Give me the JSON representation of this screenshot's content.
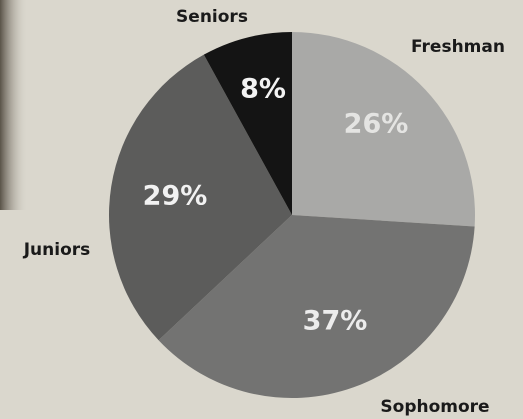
{
  "chart_data": {
    "type": "pie",
    "categories": [
      "Freshman",
      "Sophomore",
      "Juniors",
      "Seniors"
    ],
    "values": [
      26,
      37,
      29,
      8
    ],
    "value_labels": [
      "26%",
      "37%",
      "29%",
      "8%"
    ],
    "colors": [
      "#a9a9a7",
      "#737372",
      "#5c5c5b",
      "#141414"
    ]
  }
}
